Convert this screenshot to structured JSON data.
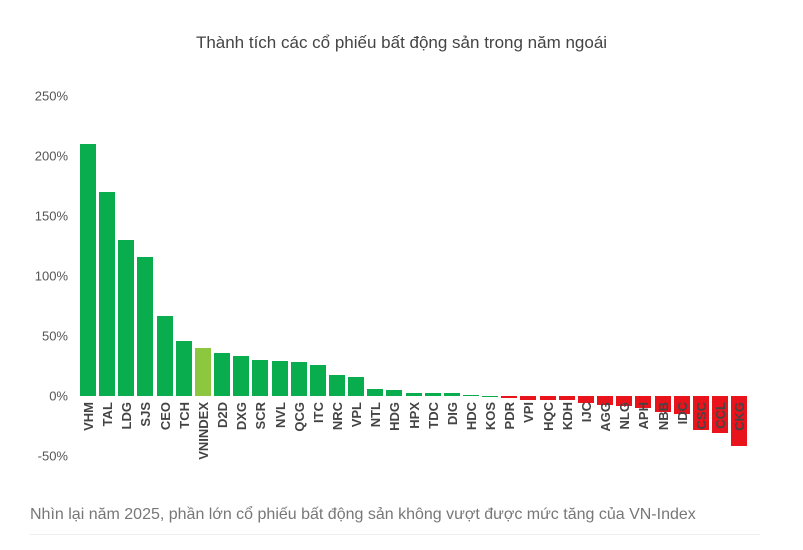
{
  "chart_data": {
    "type": "bar",
    "title": "Thành tích các cổ phiếu bất động sản trong năm ngoái",
    "xlabel": "",
    "ylabel": "",
    "ylim": [
      -50,
      250
    ],
    "yticks": [
      "250%",
      "200%",
      "150%",
      "100%",
      "50%",
      "0%",
      "-50%"
    ],
    "grid": false,
    "legend": null,
    "categories": [
      "VHM",
      "TAL",
      "LDG",
      "SJS",
      "CEO",
      "TCH",
      "VNINDEX",
      "D2D",
      "DXG",
      "SCR",
      "NVL",
      "QCG",
      "ITC",
      "NRC",
      "VPL",
      "NTL",
      "HDG",
      "HPX",
      "TDC",
      "DIG",
      "HDC",
      "KOS",
      "PDR",
      "VPI",
      "HQC",
      "KDH",
      "IJC",
      "AGG",
      "NLG",
      "APH",
      "NBB",
      "IDC",
      "CSC",
      "CCL",
      "CKG"
    ],
    "values": [
      210,
      170,
      130,
      116,
      67,
      46,
      40,
      36,
      33,
      30,
      29,
      28,
      26,
      17.5,
      16,
      6,
      5,
      2.5,
      2.5,
      2.5,
      1,
      0,
      -1.5,
      -3.5,
      -3.5,
      -3.5,
      -5.5,
      -7.5,
      -8,
      -10,
      -13,
      -15,
      -28,
      -31,
      -42
    ],
    "colors": {
      "positive": "#0aad4e",
      "benchmark": "#8dc63f",
      "negative": "#e8131b"
    },
    "highlight": "VNINDEX"
  },
  "caption": "Nhìn lại năm 2025, phần lớn cổ phiếu bất động sản không vượt được mức tăng của VN-Index"
}
